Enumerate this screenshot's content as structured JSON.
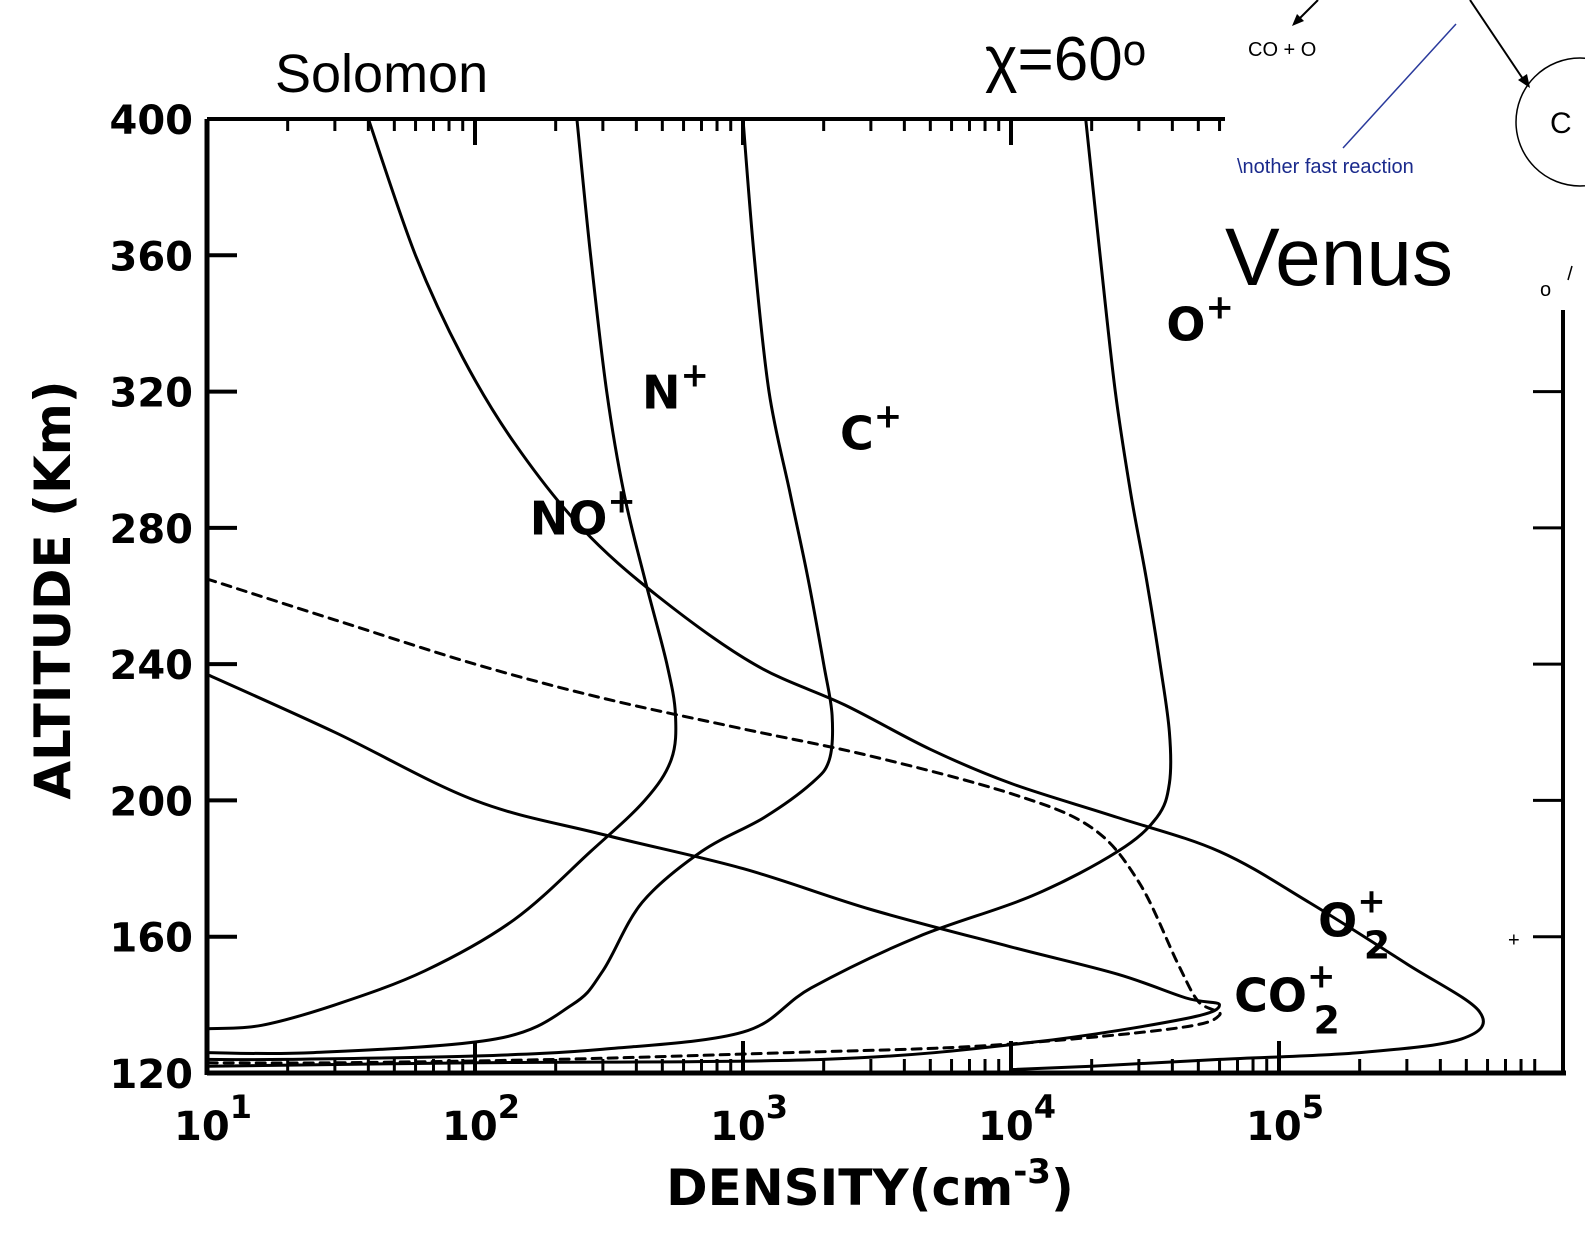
{
  "overlay": {
    "source_label": "Solomon",
    "angle_label": "χ=60ᵒ",
    "planet_label": "Venus",
    "diagram_product": "CO + O",
    "diagram_note": "\\nother fast reaction",
    "diagram_fragment_c": "C",
    "diagram_fragment_o": "o"
  },
  "chart_data": {
    "type": "line",
    "xlabel": "DENSITY(cm",
    "xlabel_sup": "-3",
    "xlabel_close": ")",
    "ylabel": "ALTITUDE (Km)",
    "xscale": "log",
    "xlim": [
      10,
      660000
    ],
    "ylim": [
      120,
      400
    ],
    "x_ticks": [
      {
        "value": 10,
        "base": "10",
        "exp": "1"
      },
      {
        "value": 100,
        "base": "10",
        "exp": "2"
      },
      {
        "value": 1000,
        "base": "10",
        "exp": "3"
      },
      {
        "value": 10000,
        "base": "10",
        "exp": "4"
      },
      {
        "value": 100000,
        "base": "10",
        "exp": "5"
      }
    ],
    "y_ticks": [
      "120",
      "160",
      "200",
      "240",
      "280",
      "320",
      "360",
      "400"
    ],
    "grid": false,
    "series": [
      {
        "name": "O⁺",
        "label_main": "O",
        "label_sup": "+",
        "label_sub": "",
        "dashed": false,
        "points": [
          [
            19000,
            400
          ],
          [
            21500,
            360
          ],
          [
            24500,
            320
          ],
          [
            28000,
            290
          ],
          [
            32000,
            265
          ],
          [
            36000,
            240
          ],
          [
            39000,
            220
          ],
          [
            39000,
            205
          ],
          [
            35000,
            195
          ],
          [
            25000,
            185
          ],
          [
            12000,
            172
          ],
          [
            4500,
            160
          ],
          [
            1800,
            145
          ],
          [
            1000,
            132
          ],
          [
            300,
            127
          ],
          [
            100,
            125
          ],
          [
            20,
            124
          ],
          [
            10,
            124
          ]
        ]
      },
      {
        "name": "C⁺",
        "label_main": "C",
        "label_sup": "+",
        "label_sub": "",
        "dashed": false,
        "points": [
          [
            1000,
            400
          ],
          [
            1100,
            360
          ],
          [
            1250,
            320
          ],
          [
            1500,
            290
          ],
          [
            1750,
            265
          ],
          [
            2000,
            240
          ],
          [
            2150,
            225
          ],
          [
            2100,
            212
          ],
          [
            1800,
            205
          ],
          [
            1200,
            195
          ],
          [
            700,
            185
          ],
          [
            420,
            170
          ],
          [
            300,
            150
          ],
          [
            230,
            140
          ],
          [
            120,
            130
          ],
          [
            25,
            126
          ],
          [
            10,
            126
          ]
        ]
      },
      {
        "name": "N⁺",
        "label_main": "N",
        "label_sup": "+",
        "label_sub": "",
        "dashed": false,
        "points": [
          [
            240,
            400
          ],
          [
            270,
            360
          ],
          [
            310,
            320
          ],
          [
            360,
            290
          ],
          [
            430,
            265
          ],
          [
            520,
            240
          ],
          [
            560,
            225
          ],
          [
            540,
            212
          ],
          [
            430,
            200
          ],
          [
            270,
            185
          ],
          [
            140,
            165
          ],
          [
            65,
            150
          ],
          [
            30,
            140
          ],
          [
            16,
            134
          ],
          [
            10,
            133
          ]
        ]
      },
      {
        "name": "O₂⁺",
        "label_main": "O",
        "label_sup": "+",
        "label_sub": "2",
        "dashed": false,
        "points": [
          [
            40,
            400
          ],
          [
            60,
            360
          ],
          [
            90,
            330
          ],
          [
            140,
            305
          ],
          [
            250,
            280
          ],
          [
            480,
            260
          ],
          [
            1100,
            240
          ],
          [
            2400,
            228
          ],
          [
            5000,
            215
          ],
          [
            10000,
            205
          ],
          [
            25000,
            195
          ],
          [
            60000,
            185
          ],
          [
            130000,
            170
          ],
          [
            300000,
            152
          ],
          [
            560000,
            138
          ],
          [
            480000,
            130
          ],
          [
            200000,
            126
          ],
          [
            60000,
            124
          ],
          [
            20000,
            122
          ],
          [
            10000,
            121
          ]
        ]
      },
      {
        "name": "CO₂⁺",
        "label_main": "CO",
        "label_sup": "+",
        "label_sub": "2",
        "dashed": false,
        "points": [
          [
            10,
            237
          ],
          [
            30,
            220
          ],
          [
            100,
            200
          ],
          [
            300,
            190
          ],
          [
            1000,
            180
          ],
          [
            3000,
            168
          ],
          [
            10000,
            157
          ],
          [
            25000,
            149
          ],
          [
            45000,
            142
          ],
          [
            60000,
            140
          ],
          [
            45000,
            136
          ],
          [
            12000,
            129
          ],
          [
            2000,
            124
          ],
          [
            100,
            123
          ],
          [
            10,
            122
          ]
        ]
      },
      {
        "name": "NO⁺",
        "label_main": "NO",
        "label_sup": "+",
        "label_sub": "",
        "dashed": true,
        "points": [
          [
            10,
            265
          ],
          [
            30,
            253
          ],
          [
            100,
            240
          ],
          [
            300,
            230
          ],
          [
            1000,
            221
          ],
          [
            3000,
            213
          ],
          [
            10000,
            202
          ],
          [
            20000,
            192
          ],
          [
            30000,
            176
          ],
          [
            42000,
            152
          ],
          [
            50000,
            141
          ],
          [
            60000,
            137
          ],
          [
            40000,
            133
          ],
          [
            8000,
            128
          ],
          [
            1500,
            126
          ],
          [
            200,
            124
          ],
          [
            30,
            123
          ],
          [
            10,
            123
          ]
        ]
      }
    ]
  }
}
